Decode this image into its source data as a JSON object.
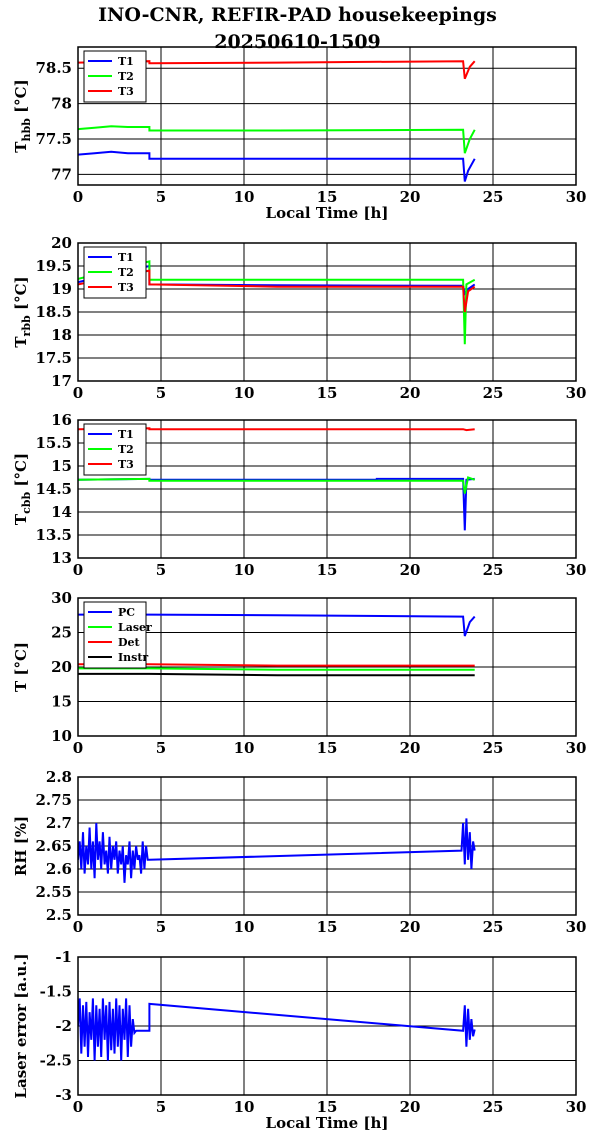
{
  "page": {
    "title_line1": "INO-CNR, REFIR-PAD housekeepings",
    "title_line2": "20250610-1509"
  },
  "chart_data": [
    {
      "type": "line",
      "ylabel": "T",
      "ylabel_sub": "hbb",
      "ylabel_unit": "[°C]",
      "xlabel": "Local Time [h]",
      "xlim": [
        0,
        30
      ],
      "ylim": [
        76.85,
        78.8
      ],
      "xticks": [
        0,
        5,
        10,
        15,
        20,
        25,
        30
      ],
      "xtick_labels": [
        "0",
        "5",
        "10",
        "15",
        "20",
        "25",
        "30"
      ],
      "yticks": [
        77,
        77.5,
        78,
        78.5
      ],
      "ytick_labels": [
        "77",
        "77.5",
        "78",
        "78.5"
      ],
      "grid": true,
      "legend": "top-left",
      "series": [
        {
          "name": "T1",
          "color": "#0000ff",
          "x": [
            0,
            1,
            2,
            3,
            4.3,
            4.3,
            12,
            23.2,
            23.3,
            23.5,
            23.9
          ],
          "y": [
            77.28,
            77.3,
            77.32,
            77.3,
            77.3,
            77.22,
            77.22,
            77.22,
            76.9,
            77.05,
            77.22
          ]
        },
        {
          "name": "T2",
          "color": "#00ff00",
          "x": [
            0,
            1,
            2,
            3,
            4.3,
            4.3,
            12,
            23.2,
            23.3,
            23.6,
            23.9
          ],
          "y": [
            77.64,
            77.66,
            77.68,
            77.67,
            77.67,
            77.62,
            77.62,
            77.63,
            77.3,
            77.5,
            77.63
          ]
        },
        {
          "name": "T3",
          "color": "#ff0000",
          "x": [
            0,
            4.3,
            4.3,
            12,
            23.2,
            23.3,
            23.6,
            23.9
          ],
          "y": [
            78.58,
            78.6,
            78.57,
            78.58,
            78.6,
            78.35,
            78.52,
            78.6
          ]
        }
      ]
    },
    {
      "type": "line",
      "ylabel": "T",
      "ylabel_sub": "rbb",
      "ylabel_unit": "[°C]",
      "xlabel": "",
      "xlim": [
        0,
        30
      ],
      "ylim": [
        17,
        20
      ],
      "xticks": [
        0,
        5,
        10,
        15,
        20,
        25,
        30
      ],
      "xtick_labels": [
        "0",
        "5",
        "10",
        "15",
        "20",
        "25",
        "30"
      ],
      "yticks": [
        17,
        17.5,
        18,
        18.5,
        19,
        19.5,
        20
      ],
      "ytick_labels": [
        "17",
        "17.5",
        "18",
        "18.5",
        "19",
        "19.5",
        "20"
      ],
      "grid": true,
      "legend": "top-left",
      "series": [
        {
          "name": "T1",
          "color": "#0000ff",
          "x": [
            0,
            4.3,
            4.3,
            12,
            23.2,
            23.3,
            23.5,
            23.9
          ],
          "y": [
            19.15,
            19.5,
            19.1,
            19.08,
            19.07,
            18.9,
            19.0,
            19.1
          ]
        },
        {
          "name": "T2",
          "color": "#00ff00",
          "x": [
            0,
            4.3,
            4.3,
            12,
            23.2,
            23.3,
            23.4,
            23.9
          ],
          "y": [
            19.22,
            19.6,
            19.2,
            19.2,
            19.2,
            17.8,
            19.1,
            19.2
          ]
        },
        {
          "name": "T3",
          "color": "#ff0000",
          "x": [
            0,
            4.3,
            4.3,
            12,
            23.2,
            23.3,
            23.5,
            23.9
          ],
          "y": [
            19.1,
            19.4,
            19.1,
            19.05,
            19.05,
            18.5,
            18.95,
            19.05
          ]
        }
      ]
    },
    {
      "type": "line",
      "ylabel": "T",
      "ylabel_sub": "cbb",
      "ylabel_unit": "[°C]",
      "xlabel": "",
      "xlim": [
        0,
        30
      ],
      "ylim": [
        13,
        16
      ],
      "xticks": [
        0,
        5,
        10,
        15,
        20,
        25,
        30
      ],
      "xtick_labels": [
        "0",
        "5",
        "10",
        "15",
        "20",
        "25",
        "30"
      ],
      "yticks": [
        13,
        13.5,
        14,
        14.5,
        15,
        15.5,
        16
      ],
      "ytick_labels": [
        "13",
        "13.5",
        "14",
        "14.5",
        "15",
        "15.5",
        "16"
      ],
      "grid": true,
      "legend": "top-left",
      "series": [
        {
          "name": "T1",
          "color": "#0000ff",
          "x": [
            0,
            4.3,
            4.3,
            18,
            18,
            23.2,
            23.3,
            23.4,
            23.9
          ],
          "y": [
            14.7,
            14.72,
            14.7,
            14.7,
            14.72,
            14.72,
            13.6,
            14.7,
            14.72
          ]
        },
        {
          "name": "T2",
          "color": "#00ff00",
          "x": [
            0,
            4.3,
            4.3,
            23.2,
            23.3,
            23.5,
            23.9
          ],
          "y": [
            14.7,
            14.72,
            14.68,
            14.68,
            14.4,
            14.75,
            14.7
          ]
        },
        {
          "name": "T3",
          "color": "#ff0000",
          "x": [
            0,
            4.3,
            4.3,
            23.2,
            23.4,
            23.9
          ],
          "y": [
            15.8,
            15.82,
            15.8,
            15.8,
            15.78,
            15.8
          ]
        }
      ]
    },
    {
      "type": "line",
      "ylabel": "T [°C]",
      "ylabel_sub": "",
      "ylabel_unit": "",
      "xlabel": "",
      "xlim": [
        0,
        30
      ],
      "ylim": [
        10,
        30
      ],
      "xticks": [
        0,
        5,
        10,
        15,
        20,
        25,
        30
      ],
      "xtick_labels": [
        "0",
        "5",
        "10",
        "15",
        "20",
        "25",
        "30"
      ],
      "yticks": [
        10,
        15,
        20,
        25,
        30
      ],
      "ytick_labels": [
        "10",
        "15",
        "20",
        "25",
        "30"
      ],
      "grid": true,
      "legend": "top-left",
      "series": [
        {
          "name": "PC",
          "color": "#0000ff",
          "x": [
            0,
            4.3,
            12,
            23.2,
            23.3,
            23.6,
            23.9
          ],
          "y": [
            27.6,
            27.6,
            27.5,
            27.3,
            24.5,
            26.5,
            27.3
          ]
        },
        {
          "name": "Laser",
          "color": "#00ff00",
          "x": [
            0,
            4.3,
            12,
            23.9
          ],
          "y": [
            19.8,
            19.8,
            19.6,
            19.6
          ]
        },
        {
          "name": "Det",
          "color": "#ff0000",
          "x": [
            0,
            4.3,
            12,
            23.9
          ],
          "y": [
            20.4,
            20.4,
            20.2,
            20.2
          ]
        },
        {
          "name": "Instr",
          "color": "#000000",
          "x": [
            0,
            4.3,
            12,
            23.9
          ],
          "y": [
            19.0,
            19.0,
            18.8,
            18.8
          ]
        }
      ]
    },
    {
      "type": "line",
      "ylabel": "RH [%]",
      "ylabel_sub": "",
      "ylabel_unit": "",
      "xlabel": "",
      "xlim": [
        0,
        30
      ],
      "ylim": [
        2.5,
        2.8
      ],
      "xticks": [
        0,
        5,
        10,
        15,
        20,
        25,
        30
      ],
      "xtick_labels": [
        "0",
        "5",
        "10",
        "15",
        "20",
        "25",
        "30"
      ],
      "yticks": [
        2.5,
        2.55,
        2.6,
        2.65,
        2.7,
        2.75,
        2.8
      ],
      "ytick_labels": [
        "2.5",
        "2.55",
        "2.6",
        "2.65",
        "2.7",
        "2.75",
        "2.8"
      ],
      "grid": true,
      "legend": "none",
      "series": [
        {
          "color": "#0000ff",
          "x": [
            0,
            0.1,
            0.2,
            0.3,
            0.4,
            0.5,
            0.6,
            0.7,
            0.8,
            0.9,
            1.0,
            1.1,
            1.2,
            1.3,
            1.4,
            1.5,
            1.6,
            1.7,
            1.8,
            1.9,
            2.0,
            2.1,
            2.2,
            2.3,
            2.4,
            2.5,
            2.6,
            2.7,
            2.8,
            2.9,
            3.0,
            3.1,
            3.2,
            3.3,
            3.4,
            3.5,
            3.6,
            3.7,
            3.8,
            3.9,
            4.0,
            4.1,
            4.2,
            4.3,
            23.1,
            23.2,
            23.3,
            23.4,
            23.5,
            23.6,
            23.7,
            23.8,
            23.9
          ],
          "y": [
            2.62,
            2.66,
            2.6,
            2.68,
            2.59,
            2.65,
            2.61,
            2.69,
            2.6,
            2.66,
            2.58,
            2.7,
            2.62,
            2.66,
            2.6,
            2.68,
            2.61,
            2.64,
            2.59,
            2.67,
            2.6,
            2.65,
            2.62,
            2.66,
            2.59,
            2.64,
            2.61,
            2.65,
            2.57,
            2.63,
            2.61,
            2.66,
            2.58,
            2.64,
            2.6,
            2.65,
            2.62,
            2.63,
            2.59,
            2.66,
            2.6,
            2.65,
            2.62,
            2.62,
            2.64,
            2.7,
            2.61,
            2.71,
            2.62,
            2.68,
            2.6,
            2.66,
            2.64
          ]
        }
      ]
    },
    {
      "type": "line",
      "ylabel": "Laser error [a.u.]",
      "ylabel_sub": "",
      "ylabel_unit": "",
      "xlabel": "Local Time [h]",
      "xlim": [
        0,
        30
      ],
      "ylim": [
        -3,
        -1
      ],
      "xticks": [
        0,
        5,
        10,
        15,
        20,
        25,
        30
      ],
      "xtick_labels": [
        "0",
        "5",
        "10",
        "15",
        "20",
        "25",
        "30"
      ],
      "yticks": [
        -3,
        -2.5,
        -2,
        -1.5,
        -1
      ],
      "ytick_labels": [
        "-3",
        "-2.5",
        "-2",
        "-1.5",
        "-1"
      ],
      "grid": true,
      "legend": "none",
      "series": [
        {
          "color": "#0000ff",
          "x": [
            0,
            0.1,
            0.2,
            0.3,
            0.4,
            0.5,
            0.6,
            0.7,
            0.8,
            0.9,
            1.0,
            1.1,
            1.2,
            1.3,
            1.4,
            1.5,
            1.6,
            1.7,
            1.8,
            1.9,
            2.0,
            2.1,
            2.2,
            2.3,
            2.4,
            2.5,
            2.6,
            2.7,
            2.8,
            2.9,
            3.0,
            3.1,
            3.2,
            3.3,
            3.4,
            3.5,
            4.3,
            4.3,
            23.2,
            23.3,
            23.4,
            23.5,
            23.6,
            23.7,
            23.8,
            23.9
          ],
          "y": [
            -2.0,
            -1.6,
            -2.4,
            -1.7,
            -2.3,
            -1.65,
            -2.45,
            -1.8,
            -2.2,
            -1.6,
            -2.5,
            -1.7,
            -2.3,
            -1.75,
            -2.45,
            -1.6,
            -2.2,
            -1.7,
            -2.5,
            -1.65,
            -2.35,
            -1.75,
            -2.4,
            -1.6,
            -2.3,
            -1.7,
            -2.5,
            -1.75,
            -2.2,
            -1.6,
            -2.45,
            -1.7,
            -2.3,
            -1.9,
            -2.1,
            -2.07,
            -2.07,
            -1.68,
            -2.07,
            -1.7,
            -2.3,
            -1.75,
            -2.2,
            -1.9,
            -2.15,
            -2.05
          ]
        }
      ]
    }
  ]
}
